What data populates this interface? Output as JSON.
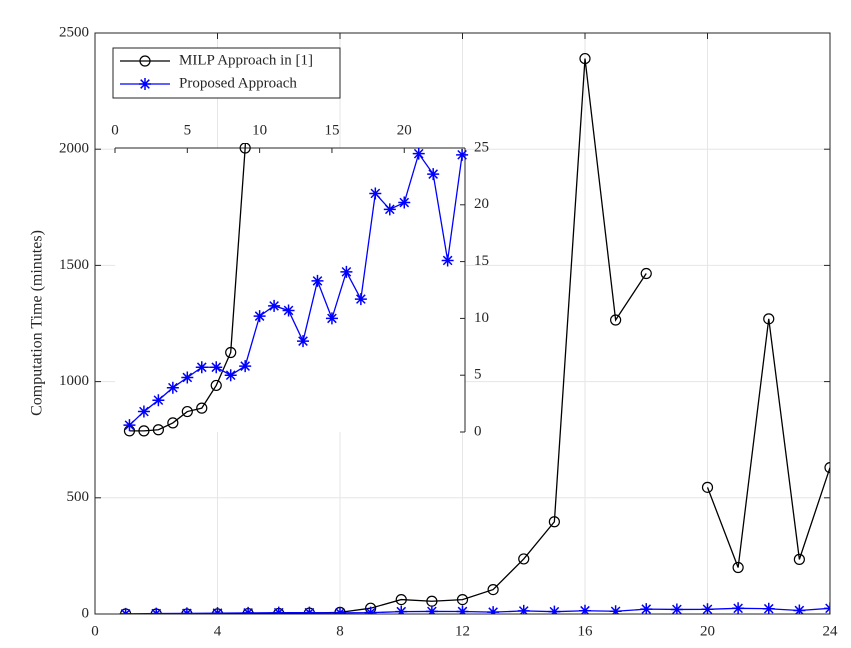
{
  "chart_data": {
    "type": "line",
    "y_label": "Computation Time (minutes)",
    "x": [
      1,
      2,
      3,
      4,
      5,
      6,
      7,
      8,
      9,
      10,
      11,
      12,
      13,
      14,
      15,
      16,
      17,
      18,
      19,
      20,
      21,
      22,
      23,
      24
    ],
    "series": [
      {
        "name": "MILP Approach in [1]",
        "color": "#000000",
        "marker": "circle",
        "values": [
          0.1,
          0.1,
          0.2,
          0.8,
          1.8,
          2.1,
          4.1,
          7.0,
          25,
          62,
          55,
          62,
          105,
          237,
          397,
          2390,
          1265,
          1465,
          null,
          545,
          200,
          1270,
          235,
          630
        ]
      },
      {
        "name": "Proposed Approach",
        "color": "#0000ff",
        "marker": "star",
        "values": [
          0.6,
          1.8,
          2.8,
          3.9,
          4.8,
          5.7,
          5.7,
          5.0,
          5.8,
          10.2,
          11.1,
          10.7,
          8.0,
          13.3,
          10.0,
          14.1,
          11.7,
          21.0,
          19.6,
          20.2,
          24.5,
          22.7,
          15.1,
          24.4
        ]
      }
    ],
    "xlim": [
      0,
      24
    ],
    "xticks": [
      0,
      4,
      8,
      12,
      16,
      20,
      24
    ],
    "ylim": [
      0,
      2500
    ],
    "yticks": [
      0,
      500,
      1000,
      1500,
      2000,
      2500
    ],
    "grid": true,
    "legend": "upper left",
    "inset": {
      "xlim": [
        0,
        24.2
      ],
      "xticks": [
        0,
        5,
        10,
        15,
        20
      ],
      "ylim": [
        0,
        25
      ],
      "yticks": [
        0,
        5,
        10,
        15,
        20,
        25
      ]
    }
  }
}
